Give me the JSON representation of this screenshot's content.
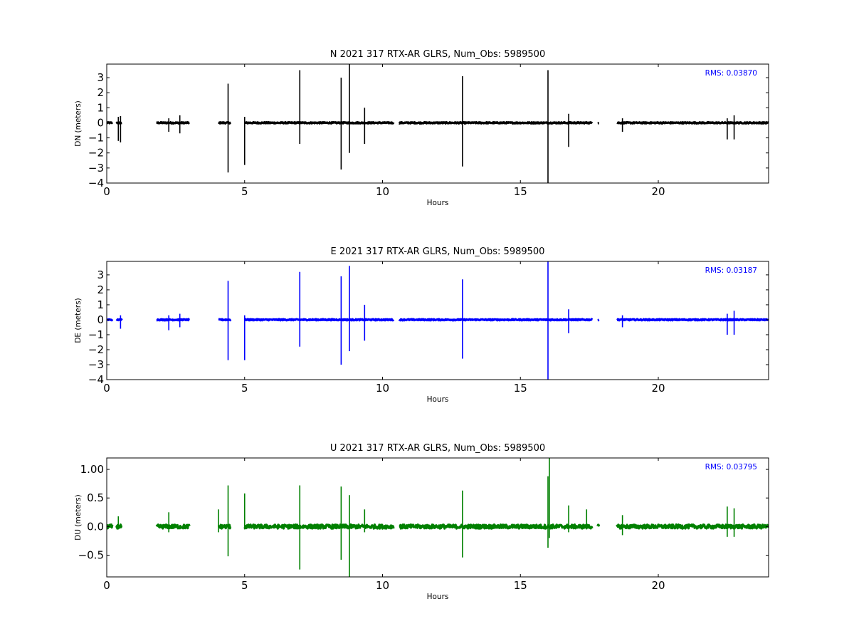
{
  "chart_data": [
    {
      "type": "line",
      "title": "N 2021 317 RTX-AR  GLRS, Num_Obs: 5989500",
      "xlabel": "Hours",
      "ylabel": "DN (meters)",
      "xlim": [
        0,
        24
      ],
      "ylim": [
        -4,
        3.9
      ],
      "xticks": [
        0,
        5,
        10,
        15,
        20
      ],
      "yticks": [
        3,
        2,
        1,
        0,
        -1,
        -2,
        -3,
        -4
      ],
      "ytick_labels": [
        "3",
        "2",
        "1",
        "0",
        "−1",
        "−2",
        "−3",
        "−4"
      ],
      "rms_text": "RMS:  0.03870",
      "color": "#000000",
      "noise": 0.04,
      "segments": [
        [
          0,
          0.2
        ],
        [
          0.35,
          0.55
        ],
        [
          1.8,
          3.0
        ],
        [
          4.05,
          4.5
        ],
        [
          5.0,
          10.4
        ],
        [
          10.6,
          17.6
        ],
        [
          17.8,
          17.85
        ],
        [
          18.5,
          24
        ]
      ],
      "spikes": [
        {
          "x": 0.42,
          "lo": -1.2,
          "hi": 0.4
        },
        {
          "x": 0.5,
          "lo": -1.3,
          "hi": 0.45
        },
        {
          "x": 2.25,
          "lo": -0.6,
          "hi": 0.3
        },
        {
          "x": 2.65,
          "lo": -0.7,
          "hi": 0.5
        },
        {
          "x": 4.4,
          "lo": -3.3,
          "hi": 2.6
        },
        {
          "x": 5.0,
          "lo": -2.8,
          "hi": 0.4
        },
        {
          "x": 7.0,
          "lo": -1.4,
          "hi": 3.5
        },
        {
          "x": 8.5,
          "lo": -3.1,
          "hi": 3.0
        },
        {
          "x": 8.8,
          "lo": -2.0,
          "hi": 3.9
        },
        {
          "x": 9.35,
          "lo": -1.4,
          "hi": 1.0
        },
        {
          "x": 12.9,
          "lo": -2.9,
          "hi": 3.1
        },
        {
          "x": 16.0,
          "lo": -4.0,
          "hi": 3.5
        },
        {
          "x": 16.75,
          "lo": -1.6,
          "hi": 0.6
        },
        {
          "x": 18.7,
          "lo": -0.6,
          "hi": 0.3
        },
        {
          "x": 22.5,
          "lo": -1.1,
          "hi": 0.3
        },
        {
          "x": 22.75,
          "lo": -1.1,
          "hi": 0.5
        }
      ]
    },
    {
      "type": "line",
      "title": "E 2021 317 RTX-AR  GLRS, Num_Obs: 5989500",
      "xlabel": "Hours",
      "ylabel": "DE (meters)",
      "xlim": [
        0,
        24
      ],
      "ylim": [
        -4,
        3.9
      ],
      "xticks": [
        0,
        5,
        10,
        15,
        20
      ],
      "yticks": [
        3,
        2,
        1,
        0,
        -1,
        -2,
        -3,
        -4
      ],
      "ytick_labels": [
        "3",
        "2",
        "1",
        "0",
        "−1",
        "−2",
        "−3",
        "−4"
      ],
      "rms_text": "RMS:  0.03187",
      "color": "#0000ff",
      "noise": 0.04,
      "segments": [
        [
          0,
          0.2
        ],
        [
          0.35,
          0.55
        ],
        [
          1.8,
          3.0
        ],
        [
          4.05,
          4.5
        ],
        [
          5.0,
          10.4
        ],
        [
          10.6,
          17.6
        ],
        [
          17.8,
          17.85
        ],
        [
          18.5,
          24
        ]
      ],
      "spikes": [
        {
          "x": 0.5,
          "lo": -0.6,
          "hi": 0.3
        },
        {
          "x": 2.25,
          "lo": -0.7,
          "hi": 0.3
        },
        {
          "x": 2.65,
          "lo": -0.5,
          "hi": 0.4
        },
        {
          "x": 4.4,
          "lo": -2.7,
          "hi": 2.6
        },
        {
          "x": 5.0,
          "lo": -2.7,
          "hi": 0.3
        },
        {
          "x": 7.0,
          "lo": -1.8,
          "hi": 3.2
        },
        {
          "x": 8.5,
          "lo": -3.0,
          "hi": 2.9
        },
        {
          "x": 8.8,
          "lo": -2.1,
          "hi": 3.6
        },
        {
          "x": 9.35,
          "lo": -1.4,
          "hi": 1.0
        },
        {
          "x": 12.9,
          "lo": -2.6,
          "hi": 2.7
        },
        {
          "x": 16.0,
          "lo": -4.0,
          "hi": 3.9
        },
        {
          "x": 16.75,
          "lo": -0.9,
          "hi": 0.7
        },
        {
          "x": 18.7,
          "lo": -0.5,
          "hi": 0.3
        },
        {
          "x": 22.5,
          "lo": -1.0,
          "hi": 0.4
        },
        {
          "x": 22.75,
          "lo": -1.0,
          "hi": 0.6
        }
      ]
    },
    {
      "type": "line",
      "title": "U 2021 317 RTX-AR  GLRS, Num_Obs: 5989500",
      "xlabel": "Hours",
      "ylabel": "DU (meters)",
      "xlim": [
        0,
        24
      ],
      "ylim": [
        -0.88,
        1.2
      ],
      "xticks": [
        0,
        5,
        10,
        15,
        20
      ],
      "yticks": [
        1.0,
        0.5,
        0.0,
        -0.5
      ],
      "ytick_labels": [
        "1.00",
        "0.5",
        "0.0",
        "−0.5"
      ],
      "rms_text": "RMS:  0.03795",
      "color": "#008000",
      "noise": 0.035,
      "segments": [
        [
          0,
          0.2
        ],
        [
          0.35,
          0.55
        ],
        [
          1.8,
          3.0
        ],
        [
          4.05,
          4.5
        ],
        [
          5.0,
          10.4
        ],
        [
          10.6,
          17.6
        ],
        [
          17.8,
          17.85
        ],
        [
          18.5,
          24
        ]
      ],
      "spikes": [
        {
          "x": 0.42,
          "lo": -0.05,
          "hi": 0.18
        },
        {
          "x": 2.25,
          "lo": -0.1,
          "hi": 0.25
        },
        {
          "x": 4.05,
          "lo": -0.1,
          "hi": 0.3
        },
        {
          "x": 4.4,
          "lo": -0.52,
          "hi": 0.72
        },
        {
          "x": 5.0,
          "lo": -0.05,
          "hi": 0.58
        },
        {
          "x": 7.0,
          "lo": -0.75,
          "hi": 0.72
        },
        {
          "x": 8.5,
          "lo": -0.58,
          "hi": 0.7
        },
        {
          "x": 8.8,
          "lo": -0.88,
          "hi": 0.55
        },
        {
          "x": 9.35,
          "lo": -0.1,
          "hi": 0.3
        },
        {
          "x": 12.9,
          "lo": -0.54,
          "hi": 0.63
        },
        {
          "x": 16.0,
          "lo": -0.37,
          "hi": 0.88
        },
        {
          "x": 16.05,
          "lo": -0.2,
          "hi": 1.2
        },
        {
          "x": 16.75,
          "lo": -0.1,
          "hi": 0.37
        },
        {
          "x": 17.4,
          "lo": -0.05,
          "hi": 0.3
        },
        {
          "x": 18.7,
          "lo": -0.15,
          "hi": 0.2
        },
        {
          "x": 22.5,
          "lo": -0.18,
          "hi": 0.35
        },
        {
          "x": 22.75,
          "lo": -0.18,
          "hi": 0.32
        }
      ]
    }
  ]
}
